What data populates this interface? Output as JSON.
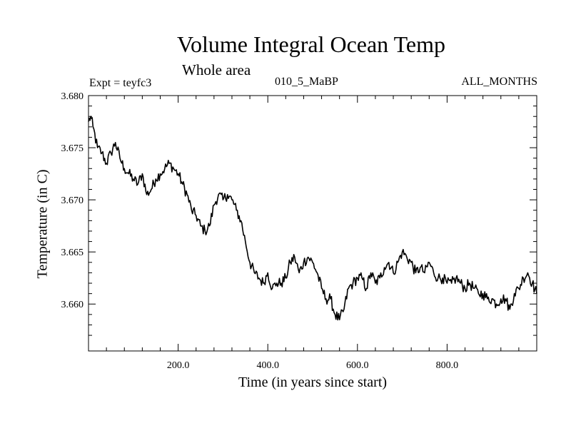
{
  "chart_data": {
    "type": "line",
    "title": "Volume Integral Ocean Temp",
    "subtitle": "Whole area",
    "experiment_label": "Expt = teyfc3",
    "experiment_name": "010_5_MaBP",
    "months_label": "ALL_MONTHS",
    "xlabel": "Time (in years since start)",
    "ylabel": "Temperature (in C)",
    "xlim": [
      0,
      1000
    ],
    "ylim": [
      3.6555,
      3.68
    ],
    "x_ticks": [
      200,
      400,
      600,
      800
    ],
    "x_tick_labels": [
      "200.0",
      "400.0",
      "600.0",
      "800.0"
    ],
    "y_ticks": [
      3.66,
      3.665,
      3.67,
      3.675,
      3.68
    ],
    "y_tick_labels": [
      "3.660",
      "3.665",
      "3.670",
      "3.675",
      "3.680"
    ],
    "grid": false,
    "series": [
      {
        "name": "Volume Integral Ocean Temp",
        "x": [
          0,
          5,
          10,
          20,
          30,
          40,
          50,
          60,
          70,
          80,
          90,
          100,
          110,
          120,
          130,
          140,
          150,
          160,
          170,
          180,
          190,
          200,
          210,
          220,
          230,
          240,
          250,
          260,
          270,
          280,
          290,
          300,
          310,
          320,
          330,
          340,
          350,
          360,
          370,
          380,
          390,
          400,
          410,
          420,
          430,
          440,
          450,
          460,
          470,
          480,
          490,
          500,
          510,
          520,
          530,
          540,
          550,
          560,
          570,
          580,
          590,
          600,
          610,
          620,
          630,
          640,
          650,
          660,
          670,
          680,
          690,
          700,
          710,
          720,
          730,
          740,
          750,
          760,
          770,
          780,
          790,
          800,
          810,
          820,
          830,
          840,
          850,
          860,
          870,
          880,
          890,
          900,
          910,
          920,
          930,
          940,
          950,
          960,
          970,
          980,
          990,
          1000
        ],
        "values": [
          3.6775,
          3.678,
          3.677,
          3.675,
          3.6745,
          3.6735,
          3.6745,
          3.6755,
          3.674,
          3.673,
          3.6725,
          3.672,
          3.6715,
          3.6725,
          3.6705,
          3.671,
          3.672,
          3.6725,
          3.673,
          3.6735,
          3.673,
          3.6725,
          3.6715,
          3.6705,
          3.669,
          3.6685,
          3.6675,
          3.667,
          3.6675,
          3.6695,
          3.6705,
          3.67,
          3.6705,
          3.67,
          3.669,
          3.668,
          3.666,
          3.664,
          3.663,
          3.6625,
          3.662,
          3.663,
          3.6615,
          3.662,
          3.662,
          3.6625,
          3.664,
          3.6645,
          3.663,
          3.664,
          3.6645,
          3.664,
          3.663,
          3.6615,
          3.6605,
          3.6605,
          3.659,
          3.6585,
          3.6595,
          3.6615,
          3.662,
          3.6625,
          3.6625,
          3.6615,
          3.663,
          3.662,
          3.6625,
          3.6635,
          3.664,
          3.663,
          3.664,
          3.665,
          3.6645,
          3.664,
          3.663,
          3.6635,
          3.663,
          3.664,
          3.663,
          3.6625,
          3.6625,
          3.662,
          3.662,
          3.6625,
          3.662,
          3.6615,
          3.662,
          3.6615,
          3.661,
          3.661,
          3.6605,
          3.6605,
          3.66,
          3.6605,
          3.6605,
          3.6595,
          3.661,
          3.6615,
          3.6625,
          3.663,
          3.662,
          3.661
        ]
      }
    ]
  }
}
